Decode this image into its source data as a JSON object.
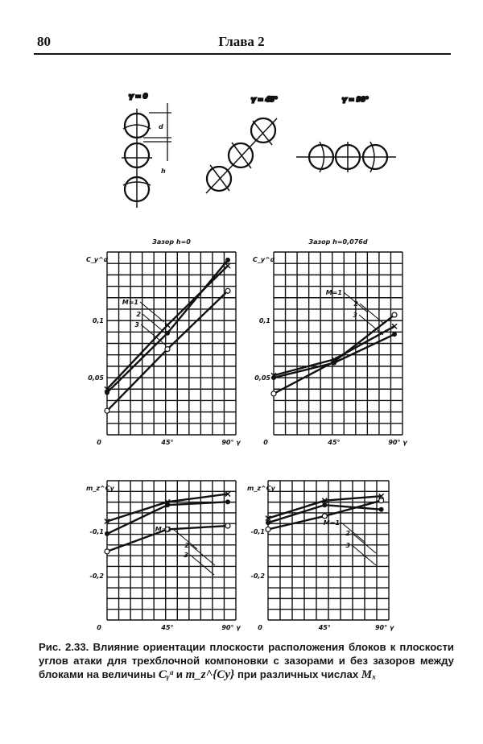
{
  "header": {
    "page_number": "80",
    "chapter": "Глава 2"
  },
  "diagram": {
    "labels": [
      "γ = 0",
      "γ = 45°",
      "γ = 90°"
    ],
    "dims": [
      "d",
      "h"
    ]
  },
  "chart_data": [
    {
      "type": "line",
      "title": "Зазор h=0",
      "ylabel": "C_y^α",
      "x": [
        0,
        45,
        90
      ],
      "xticks": [
        "0",
        "45°",
        "90° γ"
      ],
      "yticks": [
        {
          "v": 0.05,
          "t": "0,05"
        },
        {
          "v": 0.1,
          "t": "0,1"
        }
      ],
      "ylim": [
        0,
        0.16
      ],
      "xlim": [
        0,
        96
      ],
      "grid": true,
      "annotations": [
        "M=1",
        "2",
        "3"
      ],
      "series": [
        {
          "name": "M=1",
          "marker": "open",
          "values": [
            0.021,
            0.075,
            0.126
          ]
        },
        {
          "name": "2",
          "marker": "filled",
          "values": [
            0.037,
            0.089,
            0.153
          ]
        },
        {
          "name": "3",
          "marker": "cross",
          "values": [
            0.04,
            0.096,
            0.148
          ]
        }
      ]
    },
    {
      "type": "line",
      "title": "Зазор h=0,076d",
      "ylabel": "C_y^α",
      "x": [
        0,
        45,
        90
      ],
      "xticks": [
        "0",
        "45°",
        "90° γ"
      ],
      "yticks": [
        {
          "v": 0.05,
          "t": "0,05"
        },
        {
          "v": 0.1,
          "t": "0,1"
        }
      ],
      "ylim": [
        0,
        0.16
      ],
      "xlim": [
        0,
        96
      ],
      "grid": true,
      "annotations": [
        "M=1",
        "2",
        "3"
      ],
      "series": [
        {
          "name": "M=1",
          "marker": "open",
          "values": [
            0.036,
            0.064,
            0.105
          ]
        },
        {
          "name": "2",
          "marker": "filled",
          "values": [
            0.05,
            0.063,
            0.088
          ]
        },
        {
          "name": "3",
          "marker": "cross",
          "values": [
            0.052,
            0.066,
            0.095
          ]
        }
      ]
    },
    {
      "type": "line",
      "ylabel": "m_z^Cy",
      "x": [
        0,
        45,
        90
      ],
      "xticks": [
        "0",
        "45°",
        "90° γ"
      ],
      "yticks": [
        {
          "v": -0.1,
          "t": "-0,1"
        },
        {
          "v": -0.2,
          "t": "-0,2"
        }
      ],
      "ylim": [
        -0.3,
        0.015
      ],
      "xlim": [
        0,
        96
      ],
      "grid": true,
      "annotations": [
        "M=1",
        "2",
        "3"
      ],
      "series": [
        {
          "name": "M=1",
          "marker": "open",
          "values": [
            -0.145,
            -0.095,
            -0.087
          ]
        },
        {
          "name": "2",
          "marker": "filled",
          "values": [
            -0.105,
            -0.04,
            -0.033
          ]
        },
        {
          "name": "3",
          "marker": "cross",
          "values": [
            -0.077,
            -0.033,
            -0.015
          ]
        }
      ]
    },
    {
      "type": "line",
      "ylabel": "m_z^Cy",
      "x": [
        0,
        45,
        90
      ],
      "xticks": [
        "0",
        "45°",
        "90° γ"
      ],
      "yticks": [
        {
          "v": -0.1,
          "t": "-0,1"
        },
        {
          "v": -0.2,
          "t": "-0,2"
        }
      ],
      "ylim": [
        -0.3,
        0.015
      ],
      "xlim": [
        0,
        96
      ],
      "grid": true,
      "annotations": [
        "M=1",
        "2",
        "3"
      ],
      "series": [
        {
          "name": "M=1",
          "marker": "open",
          "values": [
            -0.095,
            -0.065,
            -0.03
          ]
        },
        {
          "name": "2",
          "marker": "filled",
          "values": [
            -0.08,
            -0.04,
            -0.05
          ]
        },
        {
          "name": "3",
          "marker": "cross",
          "values": [
            -0.07,
            -0.03,
            -0.02
          ]
        }
      ]
    }
  ],
  "caption": {
    "label": "Рис. 2.33.",
    "text1": "Влияние ориентации плоскости расположения блоков к плоскости углов атаки для трехблочной компоновки с зазорами и без зазоров между блоками на величины",
    "sym1": "Cᵧᵅ",
    "and": "и",
    "sym2": "m_z^{Cy}",
    "text2": "при различных числах",
    "sym3": "Mₓ"
  }
}
